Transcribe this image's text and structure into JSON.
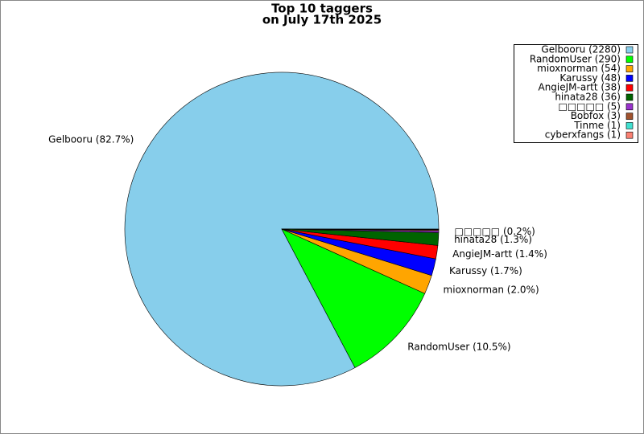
{
  "chart_data": {
    "type": "pie",
    "title": "Top 10 taggers",
    "subtitle": "on July 17th 2025",
    "values": [
      2280,
      290,
      54,
      48,
      38,
      36,
      5,
      3,
      1,
      1
    ],
    "labels": [
      "Gelbooru (82.7%)",
      "RandomUser (10.5%)",
      "mioxnorman (2.0%)",
      "Karussy (1.7%)",
      "AngieJM-artt (1.4%)",
      "hinata28 (1.3%)",
      "□□□□□ (0.2%)",
      null,
      null,
      null
    ],
    "legend_labels": [
      "Gelbooru (2280)",
      "RandomUser (290)",
      "mioxnorman (54)",
      "Karussy (48)",
      "AngieJM-artt (38)",
      "hinata28 (36)",
      "□□□□□ (5)",
      "Bobfox (3)",
      "Tinme (1)",
      "cyberxfangs (1)"
    ],
    "colors": [
      "#87ceeb",
      "#00ff00",
      "#ffa500",
      "#0000ff",
      "#ff0000",
      "#006400",
      "#9932cc",
      "#a0522d",
      "#40e0d0",
      "#fa8072"
    ],
    "legend": "upper right"
  }
}
